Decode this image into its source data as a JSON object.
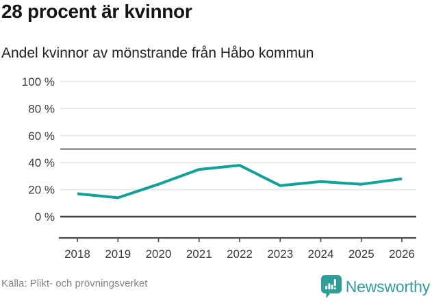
{
  "header": {
    "title": "28 procent är kvinnor",
    "subtitle": "Andel kvinnor av mönstrande från Håbo kommun"
  },
  "chart_data": {
    "type": "line",
    "title": "28 procent är kvinnor",
    "subtitle": "Andel kvinnor av mönstrande från Håbo kommun",
    "x_labels": [
      "2018",
      "2019",
      "2020",
      "2021",
      "2022",
      "2023",
      "2024",
      "2025",
      "2026"
    ],
    "series": [
      {
        "name": "Andel kvinnor av mönstrande",
        "color": "#10a29a",
        "values": [
          17,
          14,
          24,
          35,
          38,
          23,
          26,
          24,
          28
        ]
      }
    ],
    "ylim": [
      0,
      100
    ],
    "y_ticks": [
      0,
      20,
      40,
      60,
      80,
      100
    ],
    "y_tick_labels": [
      "0 %",
      "20 %",
      "40 %",
      "60 %",
      "80 %",
      "100 %"
    ],
    "reference_line_y": 50,
    "grid": "horizontal",
    "legend": "none"
  },
  "footer": {
    "source": "Källa: Plikt- och prövningsverket",
    "brand_name": "Newsworthy",
    "brand_color": "#2f9e98"
  },
  "colors": {
    "line": "#10a29a",
    "grid": "#e3e3e3",
    "reference_line": "#6b6b6b",
    "zero_line": "#3f3f3f",
    "axis": "#4a4a4a",
    "tick_text": "#3a3a3a"
  }
}
